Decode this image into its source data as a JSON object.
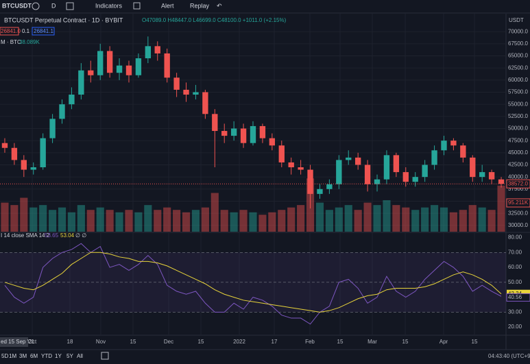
{
  "toolbar": {
    "symbol": "BTCUSDT",
    "interval": "D",
    "indicators": "Indicators",
    "alert": "Alert",
    "replay": "Replay",
    "currency": "USDT"
  },
  "legend": {
    "title": "BTCUSDT Perpetual Contract · 1D · BYBIT",
    "ohlc": "O47089.0 H48447.0 L46699.0 C48100.0 +1011.0 (+2.15%)",
    "sell": "26841.0",
    "spread": "0.1",
    "buy": "26841.1",
    "volume_name": "M · BTC",
    "volume_value": "38.089K"
  },
  "chart_data": {
    "type": "candlestick",
    "open": [
      47000,
      46000,
      43500,
      41500,
      42000,
      48000,
      52000,
      55000,
      57000,
      62000,
      61000,
      66000,
      61500,
      63000,
      61000,
      64500,
      67000,
      65500,
      60500,
      58000,
      57000,
      57500,
      53000,
      49500,
      48500,
      50000,
      47000,
      50500,
      48000,
      46500,
      43000,
      42000,
      41500,
      36500,
      37500,
      38500,
      43500,
      44000,
      42500,
      38500,
      39500,
      44500,
      41000,
      39000,
      40000,
      42500,
      45500,
      47500,
      46500,
      44000,
      40000,
      41000,
      39500
    ],
    "high": [
      48000,
      47000,
      44500,
      43000,
      49000,
      53000,
      56000,
      58500,
      63500,
      64000,
      67500,
      67000,
      64500,
      64000,
      65500,
      69000,
      68000,
      66500,
      61500,
      59500,
      59000,
      58000,
      54000,
      51000,
      51500,
      51000,
      51500,
      51000,
      49000,
      47500,
      44000,
      43500,
      42500,
      38500,
      39500,
      44500,
      45500,
      45000,
      43500,
      40500,
      45500,
      45000,
      42000,
      41000,
      43500,
      46500,
      48500,
      48000,
      47000,
      44500,
      42500,
      41500,
      40000
    ],
    "low": [
      45000,
      42500,
      40000,
      40500,
      41500,
      47000,
      51000,
      54000,
      56000,
      59500,
      60000,
      60500,
      60000,
      59500,
      60500,
      63500,
      64000,
      59500,
      56500,
      55500,
      56000,
      52000,
      42000,
      47000,
      47500,
      46000,
      46500,
      47000,
      45500,
      42000,
      40500,
      40500,
      33500,
      35500,
      36500,
      37500,
      42500,
      41500,
      37000,
      37000,
      38500,
      40000,
      38000,
      38000,
      39000,
      41500,
      44500,
      45500,
      43000,
      39000,
      39000,
      38500,
      37800
    ],
    "close": [
      46000,
      43500,
      41500,
      42000,
      48000,
      52000,
      55000,
      57000,
      62000,
      61000,
      66000,
      61500,
      63000,
      61000,
      64500,
      67000,
      65500,
      60500,
      58000,
      57000,
      57500,
      53000,
      49500,
      48500,
      50000,
      47000,
      50500,
      48000,
      46500,
      43000,
      42000,
      41500,
      36500,
      37500,
      38500,
      43500,
      44000,
      42500,
      38500,
      39500,
      44500,
      41000,
      39000,
      40000,
      42500,
      45500,
      47500,
      46500,
      44000,
      40000,
      41000,
      39500,
      38572
    ],
    "up_color": "#26a69a",
    "down_color": "#ef5350",
    "ylim": [
      28700,
      73700
    ],
    "yticks": [
      {
        "value": 70000,
        "label": "70000.0"
      },
      {
        "value": 67500,
        "label": "67500.0"
      },
      {
        "value": 65000,
        "label": "65000.0"
      },
      {
        "value": 62500,
        "label": "62500.0"
      },
      {
        "value": 60000,
        "label": "60000.0"
      },
      {
        "value": 57500,
        "label": "57500.0"
      },
      {
        "value": 55000,
        "label": "55000.0"
      },
      {
        "value": 52500,
        "label": "52500.0"
      },
      {
        "value": 50000,
        "label": "50000.0"
      },
      {
        "value": 47500,
        "label": "47500.0"
      },
      {
        "value": 45000,
        "label": "45000.0"
      },
      {
        "value": 42500,
        "label": "42500.0"
      },
      {
        "value": 40000,
        "label": "40000.0"
      },
      {
        "value": 37500,
        "label": "37500.0"
      },
      {
        "value": 35000,
        "label": "35000.0"
      },
      {
        "value": 32500,
        "label": "32500.0"
      },
      {
        "value": 30000,
        "label": "30000.0"
      }
    ],
    "last_price": {
      "value": 38572,
      "label": "38572.0"
    },
    "volume": {
      "values": [
        60,
        55,
        70,
        50,
        55,
        45,
        50,
        40,
        55,
        45,
        50,
        45,
        40,
        45,
        40,
        55,
        45,
        50,
        45,
        40,
        45,
        50,
        80,
        45,
        40,
        45,
        40,
        35,
        40,
        45,
        50,
        55,
        110,
        60,
        45,
        50,
        55,
        45,
        60,
        55,
        65,
        55,
        50,
        45,
        50,
        55,
        50,
        40,
        45,
        55,
        50,
        45,
        95.211
      ],
      "ylim": [
        0,
        450
      ],
      "last_label": "95.211K"
    },
    "time_labels": [
      "Oct",
      "18",
      "Nov",
      "15",
      "Dec",
      "15",
      "2022",
      "17",
      "Feb",
      "15",
      "Mar",
      "15",
      "Apr",
      "15"
    ],
    "crosshair_date": "ed 15 Sep '21"
  },
  "rsi": {
    "legend": "I 14 close SMA 14 2",
    "legend_rsi": "53.65",
    "legend_sma": "53.04",
    "legend_extra": "∅ ∅",
    "values": [
      48,
      40,
      36,
      40,
      60,
      66,
      70,
      72,
      76,
      70,
      74,
      60,
      62,
      58,
      62,
      68,
      62,
      48,
      44,
      42,
      44,
      36,
      30,
      30,
      36,
      32,
      40,
      38,
      34,
      28,
      26,
      26,
      22,
      30,
      34,
      50,
      52,
      46,
      36,
      40,
      54,
      44,
      40,
      44,
      52,
      58,
      64,
      60,
      54,
      44,
      48,
      44,
      40.56
    ],
    "sma": [
      50,
      48,
      46,
      45,
      48,
      52,
      56,
      62,
      66,
      70,
      70,
      69,
      67,
      66,
      64,
      64,
      63,
      61,
      58,
      55,
      52,
      49,
      45,
      42,
      40,
      38,
      37,
      36,
      35,
      34,
      33,
      32,
      31,
      30,
      31,
      33,
      36,
      39,
      41,
      42,
      45,
      46,
      46,
      46,
      47,
      49,
      52,
      55,
      57,
      55,
      52,
      48,
      42.24
    ],
    "rsi_color": "#7e57c2",
    "sma_color": "#e8d43a",
    "ylim": [
      15,
      83
    ],
    "yticks": [
      {
        "value": 80,
        "label": "80.00"
      },
      {
        "value": 70,
        "label": "70.00"
      },
      {
        "value": 60,
        "label": "60.00"
      },
      {
        "value": 50,
        "label": "50.00"
      },
      {
        "value": 40,
        "label": "40.00"
      },
      {
        "value": 30,
        "label": "30.00"
      },
      {
        "value": 20,
        "label": "20.00"
      }
    ],
    "levels": [
      70,
      50,
      30
    ],
    "last_sma_label": "42.24",
    "last_rsi_label": "40.56"
  },
  "footer": {
    "ranges": [
      "5D",
      "1M",
      "3M",
      "6M",
      "YTD",
      "1Y",
      "5Y",
      "All"
    ],
    "clock": "04:43:40 (UTC+9"
  }
}
